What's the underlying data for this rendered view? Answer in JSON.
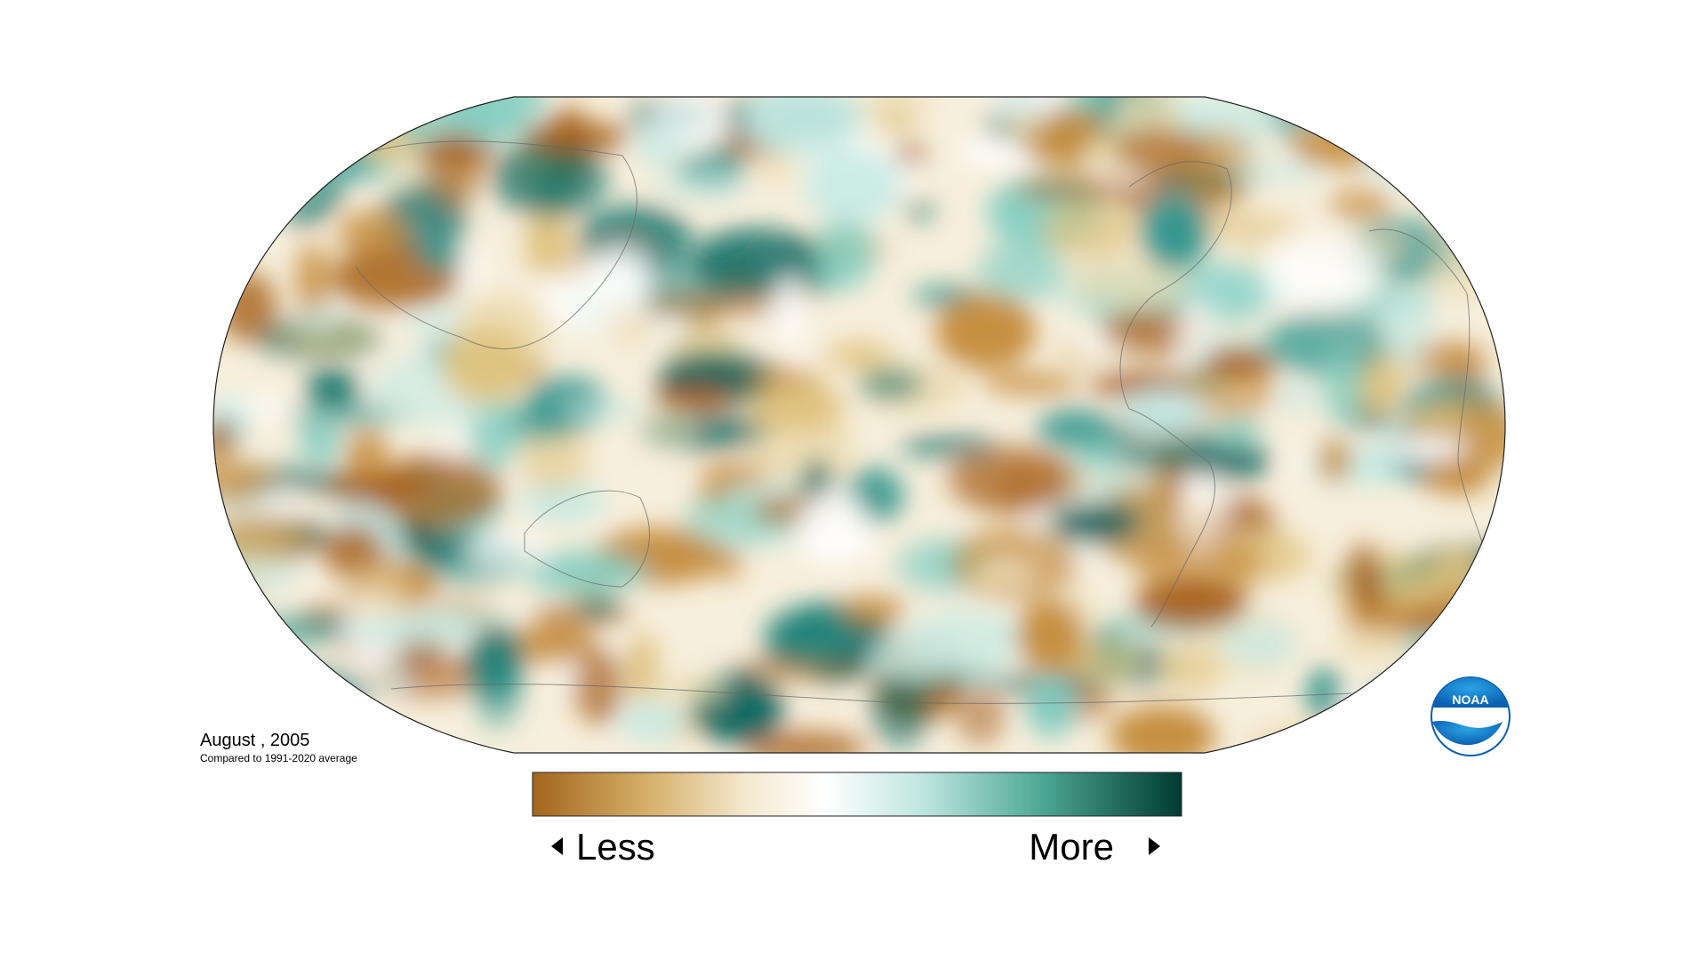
{
  "map": {
    "title": "August , 2005",
    "subtitle": "Compared to 1991-2020 average"
  },
  "legend": {
    "low_label": "Less",
    "high_label": "More"
  },
  "logo": {
    "text": "NOAA"
  }
}
